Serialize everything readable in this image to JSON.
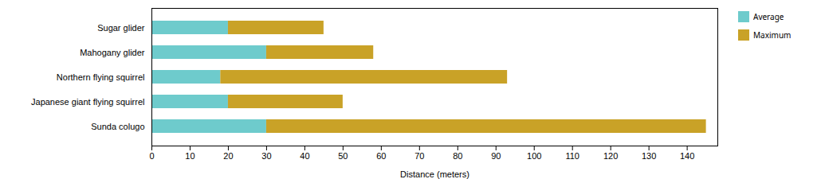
{
  "chart_data": {
    "type": "bar",
    "orientation": "horizontal",
    "stacked": true,
    "categories": [
      "Sugar glider",
      "Mahogany glider",
      "Northern flying squirrel",
      "Japanese giant flying squirrel",
      "Sunda colugo"
    ],
    "series": [
      {
        "name": "Average",
        "color": "#6ecbcc",
        "values": [
          20,
          30,
          18,
          20,
          30
        ]
      },
      {
        "name": "Maximum",
        "color": "#c9a227",
        "values": [
          25,
          28,
          75,
          30,
          115
        ]
      }
    ],
    "xlabel": "Distance (meters)",
    "xlim": [
      0,
      148
    ],
    "xticks": [
      0,
      10,
      20,
      30,
      40,
      50,
      60,
      70,
      80,
      90,
      100,
      110,
      120,
      130,
      140
    ],
    "legend": "right",
    "grid": false
  }
}
